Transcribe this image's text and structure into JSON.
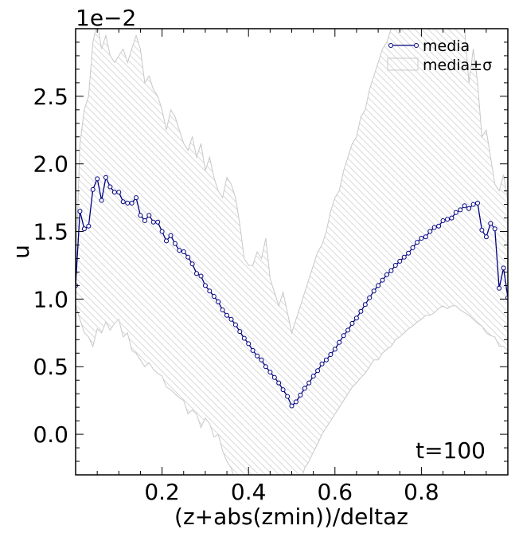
{
  "chart_data": {
    "type": "line",
    "title": "",
    "xlabel": "(z+abs(zmin))/deltaz",
    "ylabel": "u",
    "offset_label": "1e−2",
    "annotation": "t=100",
    "xlim": [
      0.0,
      1.0
    ],
    "ylim": [
      -0.003,
      0.03
    ],
    "x_ticks": [
      0.2,
      0.4,
      0.6,
      0.8
    ],
    "x_tick_labels": [
      "0.2",
      "0.4",
      "0.6",
      "0.8"
    ],
    "y_ticks": [
      0.0,
      0.005,
      0.01,
      0.015,
      0.02,
      0.025
    ],
    "y_tick_labels": [
      "0.0",
      "0.5",
      "1.0",
      "1.5",
      "2.0",
      "2.5"
    ],
    "grid": false,
    "legend_position": "top-right",
    "legend": [
      "media",
      "media±σ"
    ],
    "colors": {
      "mean": "#000080",
      "band_edge": "#c8c8c8",
      "band_hatch": "#d9d9d9"
    },
    "series": [
      {
        "name": "media",
        "x": [
          0.0,
          0.01,
          0.02,
          0.03,
          0.04,
          0.05,
          0.06,
          0.07,
          0.08,
          0.09,
          0.1,
          0.11,
          0.12,
          0.13,
          0.14,
          0.15,
          0.16,
          0.17,
          0.18,
          0.19,
          0.2,
          0.21,
          0.22,
          0.23,
          0.24,
          0.25,
          0.26,
          0.27,
          0.28,
          0.29,
          0.3,
          0.31,
          0.32,
          0.33,
          0.34,
          0.35,
          0.36,
          0.37,
          0.38,
          0.39,
          0.4,
          0.41,
          0.42,
          0.43,
          0.44,
          0.45,
          0.46,
          0.47,
          0.48,
          0.49,
          0.5,
          0.51,
          0.52,
          0.53,
          0.54,
          0.55,
          0.56,
          0.57,
          0.58,
          0.59,
          0.6,
          0.61,
          0.62,
          0.63,
          0.64,
          0.65,
          0.66,
          0.67,
          0.68,
          0.69,
          0.7,
          0.71,
          0.72,
          0.73,
          0.74,
          0.75,
          0.76,
          0.77,
          0.78,
          0.79,
          0.8,
          0.81,
          0.82,
          0.83,
          0.84,
          0.85,
          0.86,
          0.87,
          0.88,
          0.89,
          0.9,
          0.91,
          0.92,
          0.93,
          0.94,
          0.95,
          0.96,
          0.97,
          0.98,
          0.99,
          1.0
        ],
        "y": [
          0.011,
          0.0165,
          0.0152,
          0.0154,
          0.0181,
          0.0189,
          0.0173,
          0.019,
          0.0183,
          0.0179,
          0.0179,
          0.0172,
          0.0171,
          0.0171,
          0.0175,
          0.0162,
          0.0158,
          0.0162,
          0.0157,
          0.0157,
          0.015,
          0.0143,
          0.0147,
          0.0141,
          0.0136,
          0.0135,
          0.0131,
          0.0126,
          0.0119,
          0.0117,
          0.011,
          0.0106,
          0.0102,
          0.0098,
          0.0092,
          0.0088,
          0.0085,
          0.0081,
          0.0076,
          0.0071,
          0.0067,
          0.0062,
          0.0058,
          0.0055,
          0.005,
          0.0046,
          0.0042,
          0.0038,
          0.0033,
          0.0028,
          0.0021,
          0.0024,
          0.0029,
          0.0034,
          0.0038,
          0.0043,
          0.0047,
          0.0052,
          0.0055,
          0.0059,
          0.0063,
          0.0068,
          0.0073,
          0.0077,
          0.0082,
          0.0086,
          0.0091,
          0.0096,
          0.0101,
          0.0106,
          0.011,
          0.0114,
          0.0118,
          0.0121,
          0.0125,
          0.0128,
          0.0131,
          0.0134,
          0.0138,
          0.0142,
          0.0145,
          0.0146,
          0.015,
          0.0153,
          0.0154,
          0.0158,
          0.0159,
          0.016,
          0.0164,
          0.0166,
          0.0169,
          0.0167,
          0.017,
          0.0171,
          0.0151,
          0.0146,
          0.0156,
          0.0152,
          0.0108,
          0.0123,
          0.0101
        ]
      },
      {
        "name": "media±σ",
        "x": [
          0.0,
          0.01,
          0.02,
          0.03,
          0.04,
          0.05,
          0.06,
          0.07,
          0.08,
          0.09,
          0.1,
          0.11,
          0.12,
          0.13,
          0.14,
          0.15,
          0.16,
          0.17,
          0.18,
          0.19,
          0.2,
          0.21,
          0.22,
          0.23,
          0.24,
          0.25,
          0.26,
          0.27,
          0.28,
          0.29,
          0.3,
          0.31,
          0.32,
          0.33,
          0.34,
          0.35,
          0.36,
          0.37,
          0.38,
          0.39,
          0.4,
          0.41,
          0.42,
          0.43,
          0.44,
          0.45,
          0.46,
          0.47,
          0.48,
          0.49,
          0.5,
          0.51,
          0.52,
          0.53,
          0.54,
          0.55,
          0.56,
          0.57,
          0.58,
          0.59,
          0.6,
          0.61,
          0.62,
          0.63,
          0.64,
          0.65,
          0.66,
          0.67,
          0.68,
          0.69,
          0.7,
          0.71,
          0.72,
          0.73,
          0.74,
          0.75,
          0.76,
          0.77,
          0.78,
          0.79,
          0.8,
          0.81,
          0.82,
          0.83,
          0.84,
          0.85,
          0.86,
          0.87,
          0.88,
          0.89,
          0.9,
          0.91,
          0.92,
          0.93,
          0.94,
          0.95,
          0.96,
          0.97,
          0.98,
          0.99,
          1.0
        ],
        "upper": [
          0.012,
          0.0215,
          0.024,
          0.025,
          0.029,
          0.0305,
          0.0285,
          0.0295,
          0.028,
          0.0275,
          0.028,
          0.0285,
          0.0275,
          0.0285,
          0.0295,
          0.0285,
          0.026,
          0.0265,
          0.0255,
          0.025,
          0.024,
          0.0225,
          0.024,
          0.0235,
          0.0225,
          0.0215,
          0.021,
          0.022,
          0.0205,
          0.0215,
          0.0195,
          0.0205,
          0.019,
          0.018,
          0.0175,
          0.019,
          0.0185,
          0.0175,
          0.0155,
          0.013,
          0.0125,
          0.0125,
          0.0135,
          0.013,
          0.0145,
          0.0115,
          0.0105,
          0.0095,
          0.0105,
          0.009,
          0.0075,
          0.0085,
          0.0095,
          0.0105,
          0.0115,
          0.0125,
          0.0135,
          0.014,
          0.015,
          0.0165,
          0.0175,
          0.018,
          0.0195,
          0.0205,
          0.0215,
          0.022,
          0.0235,
          0.024,
          0.0255,
          0.0265,
          0.0275,
          0.0285,
          0.029,
          0.03,
          0.0305,
          0.031,
          0.0315,
          0.032,
          0.0325,
          0.0325,
          0.033,
          0.0335,
          0.0335,
          0.034,
          0.034,
          0.0345,
          0.035,
          0.035,
          0.035,
          0.0345,
          0.03,
          0.026,
          0.0285,
          0.026,
          0.022,
          0.0225,
          0.0205,
          0.0185,
          0.018,
          0.0192,
          0.0172
        ],
        "lower": [
          0.0095,
          0.0085,
          0.0075,
          0.0072,
          0.0065,
          0.0078,
          0.0075,
          0.0083,
          0.0077,
          0.0082,
          0.0085,
          0.0072,
          0.0075,
          0.0062,
          0.006,
          0.0055,
          0.005,
          0.0053,
          0.0048,
          0.0045,
          0.0043,
          0.0035,
          0.0033,
          0.003,
          0.0027,
          0.0025,
          0.0015,
          0.0018,
          0.0015,
          0.0005,
          0.0012,
          0.0008,
          -0.0002,
          0.0,
          -0.0012,
          -0.002,
          -0.0025,
          -0.0035,
          -0.0045,
          -0.0035,
          -0.005,
          -0.004,
          -0.0045,
          -0.006,
          -0.0045,
          -0.0055,
          -0.004,
          -0.005,
          -0.0045,
          -0.004,
          -0.0035,
          -0.004,
          -0.0035,
          -0.0025,
          -0.002,
          -0.0013,
          -0.0007,
          0.0,
          0.0005,
          0.001,
          0.0015,
          0.002,
          0.0025,
          0.003,
          0.0035,
          0.0038,
          0.0042,
          0.0045,
          0.005,
          0.0055,
          0.0055,
          0.006,
          0.0063,
          0.0065,
          0.007,
          0.0072,
          0.0075,
          0.0078,
          0.008,
          0.0083,
          0.0085,
          0.0088,
          0.0088,
          0.009,
          0.0093,
          0.0095,
          0.0093,
          0.0095,
          0.0095,
          0.0092,
          0.009,
          0.0088,
          0.0085,
          0.0082,
          0.008,
          0.0075,
          0.0073,
          0.0072,
          0.0065,
          0.0065,
          0.0062
        ]
      }
    ]
  }
}
